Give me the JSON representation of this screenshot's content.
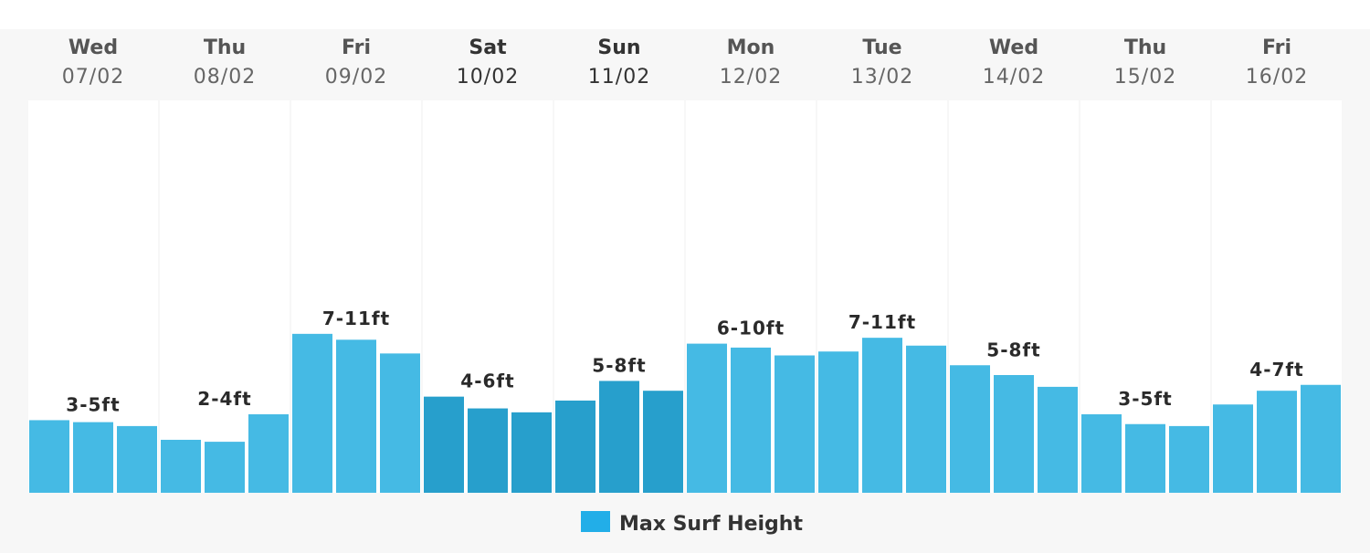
{
  "colors": {
    "bar_weekday": "#45bae4",
    "bar_weekend": "#279fcc",
    "legend_swatch": "#22aee8",
    "column_bg": "#ffffff",
    "page_bg": "#f7f7f7"
  },
  "chart_data": {
    "type": "bar",
    "legend": [
      {
        "label": "Max Surf Height"
      }
    ],
    "ylim": [
      0,
      20
    ],
    "grid": false,
    "legend_position": "bottom-center",
    "days": [
      {
        "day": "Wed",
        "date": "07/02",
        "weekend": false,
        "range": "3-5ft",
        "values": [
          3.7,
          3.6,
          3.4
        ]
      },
      {
        "day": "Thu",
        "date": "08/02",
        "weekend": false,
        "range": "2-4ft",
        "values": [
          2.7,
          2.6,
          4.0
        ]
      },
      {
        "day": "Fri",
        "date": "09/02",
        "weekend": false,
        "range": "7-11ft",
        "values": [
          8.1,
          7.8,
          7.1
        ]
      },
      {
        "day": "Sat",
        "date": "10/02",
        "weekend": true,
        "range": "4-6ft",
        "values": [
          4.9,
          4.3,
          4.1
        ]
      },
      {
        "day": "Sun",
        "date": "11/02",
        "weekend": true,
        "range": "5-8ft",
        "values": [
          4.7,
          5.7,
          5.2
        ]
      },
      {
        "day": "Mon",
        "date": "12/02",
        "weekend": false,
        "range": "6-10ft",
        "values": [
          7.6,
          7.4,
          7.0
        ]
      },
      {
        "day": "Tue",
        "date": "13/02",
        "weekend": false,
        "range": "7-11ft",
        "values": [
          7.2,
          7.9,
          7.5
        ]
      },
      {
        "day": "Wed",
        "date": "14/02",
        "weekend": false,
        "range": "5-8ft",
        "values": [
          6.5,
          6.0,
          5.4
        ]
      },
      {
        "day": "Thu",
        "date": "15/02",
        "weekend": false,
        "range": "3-5ft",
        "values": [
          4.0,
          3.5,
          3.4
        ]
      },
      {
        "day": "Fri",
        "date": "16/02",
        "weekend": false,
        "range": "4-7ft",
        "values": [
          4.5,
          5.2,
          5.5
        ]
      }
    ]
  }
}
